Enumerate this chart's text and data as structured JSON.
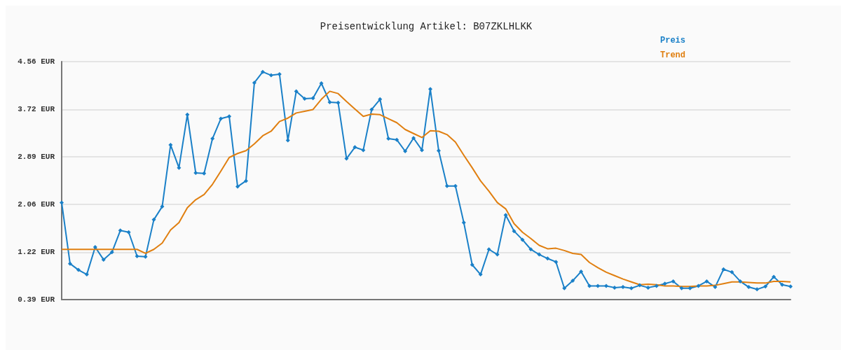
{
  "chart_data": {
    "type": "line",
    "title": "Preisentwicklung Artikel: B07ZKLHLKK",
    "categories": [
      null,
      null,
      null,
      null,
      null,
      null,
      null,
      null,
      null,
      null,
      null,
      null,
      null,
      null,
      null,
      null,
      null,
      null,
      null,
      null,
      null,
      null,
      null,
      null,
      null,
      null,
      null,
      null,
      null,
      null,
      null,
      null,
      null,
      null,
      null,
      null,
      null,
      null,
      null,
      null,
      null,
      null,
      null,
      null,
      null,
      null,
      null,
      null,
      null,
      null,
      null,
      null,
      null,
      null,
      null,
      null,
      null,
      null,
      null,
      null,
      null,
      null,
      null,
      null,
      null,
      null,
      null,
      null,
      null,
      null,
      null,
      null,
      null,
      null,
      null,
      null,
      null,
      null,
      null,
      null,
      null,
      null,
      null,
      null,
      null,
      null,
      null,
      null
    ],
    "series": [
      {
        "name": "Preis",
        "color": "#1a80c8",
        "marker": "diamond",
        "values": [
          2.09,
          1.02,
          0.91,
          0.83,
          1.31,
          1.09,
          1.22,
          1.6,
          1.57,
          1.15,
          1.14,
          1.79,
          2.02,
          3.1,
          2.7,
          3.63,
          2.61,
          2.6,
          3.21,
          3.56,
          3.6,
          2.37,
          2.47,
          4.19,
          4.38,
          4.32,
          4.34,
          3.18,
          4.04,
          3.91,
          3.92,
          4.18,
          3.85,
          3.84,
          2.86,
          3.06,
          3.01,
          3.72,
          3.9,
          3.21,
          3.19,
          2.99,
          3.22,
          3.01,
          4.08,
          3.0,
          2.38,
          2.38,
          1.74,
          1.0,
          0.83,
          1.27,
          1.18,
          1.87,
          1.59,
          1.44,
          1.27,
          1.18,
          1.11,
          1.05,
          0.59,
          0.72,
          0.88,
          0.63,
          0.63,
          0.63,
          0.6,
          0.61,
          0.59,
          0.64,
          0.6,
          0.63,
          0.67,
          0.71,
          0.59,
          0.59,
          0.63,
          0.71,
          0.61,
          0.92,
          0.87,
          0.71,
          0.61,
          0.57,
          0.62,
          0.79,
          0.65,
          0.62
        ]
      },
      {
        "name": "Trend",
        "color": "#e07f10",
        "marker": "none",
        "values": [
          1.27,
          1.27,
          1.27,
          1.27,
          1.27,
          1.27,
          1.27,
          1.27,
          1.27,
          1.27,
          1.2,
          1.27,
          1.38,
          1.61,
          1.74,
          2.0,
          2.14,
          2.23,
          2.41,
          2.64,
          2.88,
          2.95,
          3.0,
          3.12,
          3.26,
          3.34,
          3.51,
          3.57,
          3.66,
          3.69,
          3.72,
          3.9,
          4.04,
          4.0,
          3.86,
          3.73,
          3.6,
          3.64,
          3.63,
          3.56,
          3.49,
          3.37,
          3.3,
          3.23,
          3.35,
          3.34,
          3.28,
          3.15,
          2.92,
          2.7,
          2.47,
          2.29,
          2.09,
          1.98,
          1.72,
          1.57,
          1.46,
          1.34,
          1.28,
          1.29,
          1.25,
          1.2,
          1.18,
          1.04,
          0.95,
          0.87,
          0.81,
          0.75,
          0.7,
          0.65,
          0.66,
          0.65,
          0.63,
          0.63,
          0.62,
          0.62,
          0.63,
          0.63,
          0.64,
          0.67,
          0.7,
          0.7,
          0.69,
          0.68,
          0.68,
          0.71,
          0.71,
          0.7
        ]
      }
    ],
    "ylim": [
      0.39,
      4.56
    ],
    "yticks": [
      {
        "value": 0.39,
        "label": "0.39 EUR"
      },
      {
        "value": 1.22,
        "label": "1.22 EUR"
      },
      {
        "value": 2.06,
        "label": "2.06 EUR"
      },
      {
        "value": 2.89,
        "label": "2.89 EUR"
      },
      {
        "value": 3.72,
        "label": "3.72 EUR"
      },
      {
        "value": 4.56,
        "label": "4.56 EUR"
      }
    ],
    "grid": "y",
    "legend": "top right",
    "line_style": "solid"
  }
}
